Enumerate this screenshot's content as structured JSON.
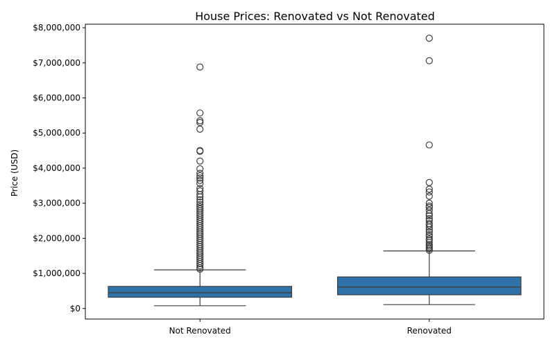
{
  "chart_data": {
    "type": "box",
    "title": "House Prices: Renovated vs Not Renovated",
    "xlabel": "",
    "ylabel": "Price (USD)",
    "ylim": [
      -300000,
      8100000
    ],
    "yticks": [
      0,
      1000000,
      2000000,
      3000000,
      4000000,
      5000000,
      6000000,
      7000000,
      8000000
    ],
    "ytick_labels": [
      "$0",
      "$1,000,000",
      "$2,000,000",
      "$3,000,000",
      "$4,000,000",
      "$5,000,000",
      "$6,000,000",
      "$7,000,000",
      "$8,000,000"
    ],
    "grid": false,
    "box_color": "#2f72a9",
    "categories": [
      "Not Renovated",
      "Renovated"
    ],
    "boxes": [
      {
        "category": "Not Renovated",
        "whisker_low": 78000,
        "q1": 320000,
        "median": 450000,
        "q3": 630000,
        "whisker_high": 1100000,
        "outliers": [
          6880000,
          5570000,
          5350000,
          5300000,
          5110000,
          4500000,
          4480000,
          4200000,
          3980000,
          3850000,
          3780000,
          3720000,
          3650000,
          3560000,
          3420000,
          3350000,
          3250000,
          3180000,
          3100000,
          3030000,
          2960000,
          2900000,
          2840000,
          2780000,
          2720000,
          2660000,
          2600000,
          2540000,
          2480000,
          2420000,
          2360000,
          2300000,
          2240000,
          2180000,
          2120000,
          2060000,
          2000000,
          1940000,
          1880000,
          1820000,
          1760000,
          1700000,
          1640000,
          1580000,
          1520000,
          1460000,
          1400000,
          1340000,
          1280000,
          1220000,
          1160000,
          1120000
        ]
      },
      {
        "category": "Renovated",
        "whisker_low": 110000,
        "q1": 390000,
        "median": 610000,
        "q3": 900000,
        "whisker_high": 1640000,
        "outliers": [
          7700000,
          7060000,
          4660000,
          3590000,
          3400000,
          3320000,
          3200000,
          3000000,
          2920000,
          2880000,
          2800000,
          2700000,
          2640000,
          2560000,
          2500000,
          2420000,
          2380000,
          2320000,
          2250000,
          2180000,
          2100000,
          2050000,
          1980000,
          1940000,
          1880000,
          1820000,
          1780000,
          1740000,
          1700000,
          1660000
        ]
      }
    ]
  }
}
